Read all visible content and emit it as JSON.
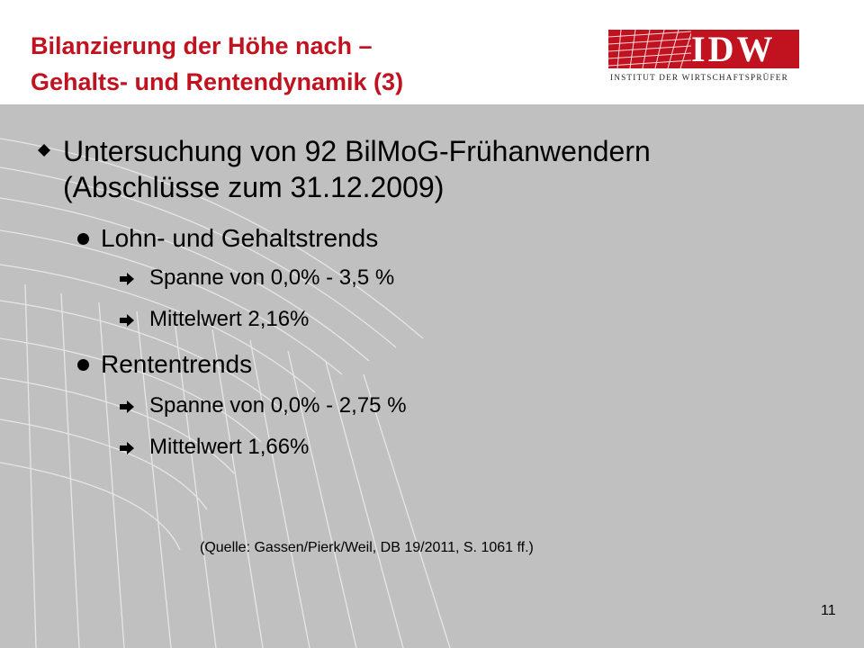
{
  "header": {
    "title_line1": "Bilanzierung der Höhe nach –",
    "title_line2": "Gehalts- und Rentendynamik (3)",
    "logo_text": "IDW",
    "logo_subtitle": "INSTITUT DER WIRTSCHAFTSPRÜFER"
  },
  "content": {
    "main_bullet_line1": "Untersuchung von 92 BilMoG-Frühanwendern",
    "main_bullet_line2": "(Abschlüsse zum 31.12.2009)",
    "groups": [
      {
        "label": "Lohn- und Gehaltstrends",
        "items": [
          "Spanne von 0,0% - 3,5 %",
          "Mittelwert 2,16%"
        ]
      },
      {
        "label": "Rententrends",
        "items": [
          "Spanne von 0,0% - 2,75 %",
          "Mittelwert 1,66%"
        ]
      }
    ],
    "source": "(Quelle: Gassen/Pierk/Weil, DB 19/2011, S. 1061 ff.)"
  },
  "footer": {
    "page_number": "11"
  },
  "colors": {
    "accent": "#c0121f",
    "background": "#c0c0c0"
  }
}
